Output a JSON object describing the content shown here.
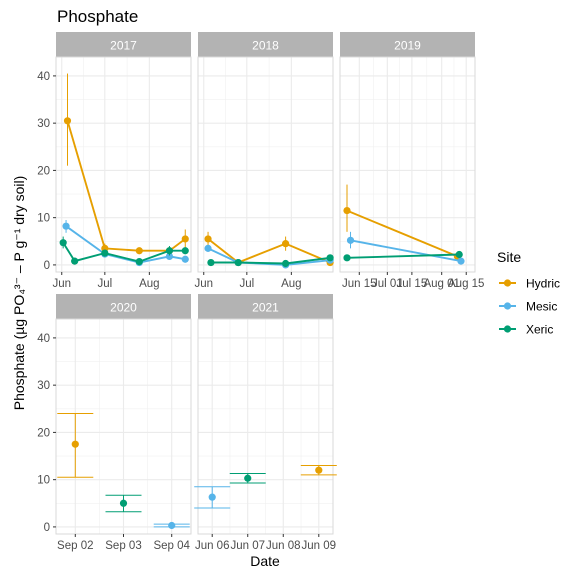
{
  "chart_data": {
    "type": "line",
    "title": "Phosphate",
    "xlabel": "Date",
    "ylabel": "Phosphate (µg PO₄³⁻ – P g⁻¹ dry soil)",
    "ylim": [
      -1.5,
      44
    ],
    "y_ticks": [
      "0",
      "10",
      "20",
      "30",
      "40"
    ],
    "legend": {
      "title": "Site",
      "position": "right",
      "items": [
        {
          "name": "Hydric",
          "color": "#E69F00"
        },
        {
          "name": "Mesic",
          "color": "#56B4E9"
        },
        {
          "name": "Xeric",
          "color": "#009E73"
        }
      ]
    },
    "grid": true,
    "panels": [
      {
        "strip": "2017",
        "x_ticks": [
          "Jun",
          "Jul",
          "Aug"
        ],
        "lines": true,
        "series": [
          {
            "name": "Hydric",
            "points": [
              {
                "x": "Jun 05",
                "y": 30.5,
                "lo": 21.0,
                "hi": 40.5
              },
              {
                "x": "Jul 01",
                "y": 3.5,
                "lo": 2.8,
                "hi": 4.5
              },
              {
                "x": "Jul 25",
                "y": 3.0,
                "lo": 2.5,
                "hi": 3.5
              },
              {
                "x": "Aug 15",
                "y": 3.0,
                "lo": 2.5,
                "hi": 3.5
              },
              {
                "x": "Aug 26",
                "y": 5.5,
                "lo": 3.5,
                "hi": 7.5
              }
            ]
          },
          {
            "name": "Mesic",
            "points": [
              {
                "x": "Jun 04",
                "y": 8.2,
                "lo": 6.8,
                "hi": 9.5
              },
              {
                "x": "Jul 01",
                "y": 2.3,
                "lo": 1.8,
                "hi": 3.0
              },
              {
                "x": "Jul 25",
                "y": 0.5,
                "lo": 0.1,
                "hi": 0.8
              },
              {
                "x": "Aug 15",
                "y": 1.8,
                "lo": 1.4,
                "hi": 2.3
              },
              {
                "x": "Aug 26",
                "y": 1.2,
                "lo": 0.8,
                "hi": 1.6
              }
            ]
          },
          {
            "name": "Xeric",
            "points": [
              {
                "x": "Jun 02",
                "y": 4.7,
                "lo": 3.5,
                "hi": 6.0
              },
              {
                "x": "Jun 10",
                "y": 0.8,
                "lo": 0.5,
                "hi": 1.1
              },
              {
                "x": "Jul 01",
                "y": 2.5,
                "lo": 2.0,
                "hi": 3.0
              },
              {
                "x": "Jul 25",
                "y": 0.7,
                "lo": 0.4,
                "hi": 1.0
              },
              {
                "x": "Aug 15",
                "y": 3.0,
                "lo": 2.0,
                "hi": 4.0
              },
              {
                "x": "Aug 26",
                "y": 3.0,
                "lo": 2.5,
                "hi": 3.5
              }
            ]
          }
        ]
      },
      {
        "strip": "2018",
        "x_ticks": [
          "Jun",
          "Jul",
          "Aug"
        ],
        "lines": true,
        "series": [
          {
            "name": "Hydric",
            "points": [
              {
                "x": "Jun 04",
                "y": 5.5,
                "lo": 4.0,
                "hi": 7.0
              },
              {
                "x": "Jun 25",
                "y": 0.5,
                "lo": 0.2,
                "hi": 0.8
              },
              {
                "x": "Jul 28",
                "y": 4.5,
                "lo": 3.0,
                "hi": 6.0
              },
              {
                "x": "Aug 28",
                "y": 0.5,
                "lo": 0.2,
                "hi": 0.8
              }
            ]
          },
          {
            "name": "Mesic",
            "points": [
              {
                "x": "Jun 04",
                "y": 3.5,
                "lo": 2.8,
                "hi": 4.2
              },
              {
                "x": "Jun 25",
                "y": 0.5,
                "lo": 0.2,
                "hi": 0.8
              },
              {
                "x": "Jul 28",
                "y": 0.0,
                "lo": -0.3,
                "hi": 0.3
              },
              {
                "x": "Aug 28",
                "y": 1.0,
                "lo": 0.6,
                "hi": 1.4
              }
            ]
          },
          {
            "name": "Xeric",
            "points": [
              {
                "x": "Jun 06",
                "y": 0.5,
                "lo": 0.2,
                "hi": 0.8
              },
              {
                "x": "Jun 25",
                "y": 0.5,
                "lo": 0.2,
                "hi": 0.8
              },
              {
                "x": "Jul 28",
                "y": 0.3,
                "lo": 0.0,
                "hi": 0.6
              },
              {
                "x": "Aug 28",
                "y": 1.5,
                "lo": 1.0,
                "hi": 2.0
              }
            ]
          }
        ]
      },
      {
        "strip": "2019",
        "x_ticks": [
          "Jun 15",
          "Jul 01",
          "Jul 15",
          "Aug 01",
          "Aug 15"
        ],
        "lines": true,
        "series": [
          {
            "name": "Hydric",
            "points": [
              {
                "x": "Jun 08",
                "y": 11.5,
                "lo": 7.0,
                "hi": 17.0
              },
              {
                "x": "Aug 10",
                "y": 1.8,
                "lo": 1.3,
                "hi": 2.3
              }
            ]
          },
          {
            "name": "Mesic",
            "points": [
              {
                "x": "Jun 10",
                "y": 5.2,
                "lo": 3.5,
                "hi": 7.0
              },
              {
                "x": "Aug 12",
                "y": 0.8,
                "lo": 0.4,
                "hi": 1.2
              }
            ]
          },
          {
            "name": "Xeric",
            "points": [
              {
                "x": "Jun 08",
                "y": 1.5,
                "lo": 1.2,
                "hi": 1.8
              },
              {
                "x": "Aug 11",
                "y": 2.2,
                "lo": 1.5,
                "hi": 2.9
              }
            ]
          }
        ]
      },
      {
        "strip": "2020",
        "x_ticks": [
          "Sep 02",
          "Sep 03",
          "Sep 04"
        ],
        "lines": false,
        "series": [
          {
            "name": "Hydric",
            "points": [
              {
                "x": "Sep 02",
                "y": 17.5,
                "lo": 10.5,
                "hi": 24.0
              }
            ]
          },
          {
            "name": "Xeric",
            "points": [
              {
                "x": "Sep 03",
                "y": 5.0,
                "lo": 3.2,
                "hi": 6.7
              }
            ]
          },
          {
            "name": "Mesic",
            "points": [
              {
                "x": "Sep 04",
                "y": 0.3,
                "lo": 0.0,
                "hi": 0.6
              }
            ]
          }
        ]
      },
      {
        "strip": "2021",
        "x_ticks": [
          "Jun 06",
          "Jun 07",
          "Jun 08",
          "Jun 09"
        ],
        "lines": false,
        "series": [
          {
            "name": "Mesic",
            "points": [
              {
                "x": "Jun 06",
                "y": 6.3,
                "lo": 4.0,
                "hi": 8.5
              }
            ]
          },
          {
            "name": "Xeric",
            "points": [
              {
                "x": "Jun 07",
                "y": 10.3,
                "lo": 9.3,
                "hi": 11.3
              }
            ]
          },
          {
            "name": "Hydric",
            "points": [
              {
                "x": "Jun 09",
                "y": 12.0,
                "lo": 11.0,
                "hi": 13.0
              }
            ]
          }
        ]
      }
    ]
  }
}
